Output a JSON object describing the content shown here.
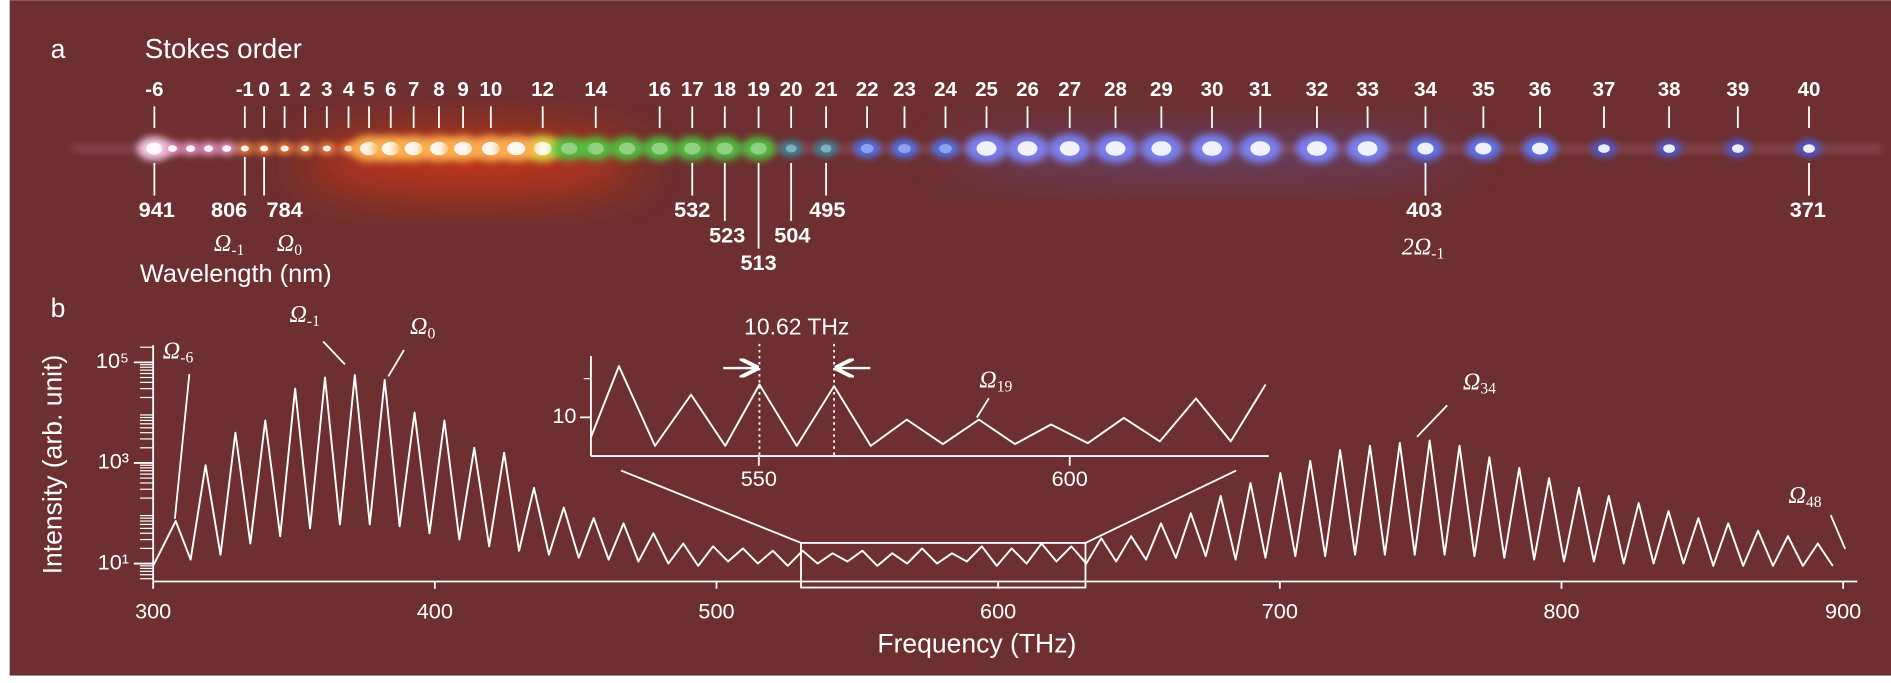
{
  "panel_a": {
    "label": "a",
    "axis_title": "Stokes order",
    "orders": [
      -6,
      -1,
      0,
      1,
      2,
      3,
      4,
      5,
      6,
      7,
      8,
      9,
      10,
      12,
      14,
      16,
      17,
      18,
      19,
      20,
      21,
      22,
      23,
      24,
      25,
      26,
      27,
      28,
      29,
      30,
      31,
      32,
      33,
      34,
      35,
      36,
      37,
      38,
      39,
      40
    ],
    "wavelength_title": "Wavelength (nm)",
    "wavelengths": [
      941,
      806,
      784,
      532,
      523,
      513,
      504,
      495,
      403,
      371
    ],
    "line_labels": [
      {
        "symbol": "Ω",
        "sub": "-1"
      },
      {
        "symbol": "Ω",
        "sub": "0"
      },
      {
        "symbol": "2Ω",
        "sub": "-1"
      }
    ]
  },
  "panel_b_label": "b",
  "chart_data": [
    {
      "type": "line",
      "x_label": "Frequency (THz)",
      "y_label": "Intensity (arb. unit)",
      "xlim": [
        300,
        905
      ],
      "ylim": [
        4.4,
        220000
      ],
      "log_y": true,
      "xticks": [
        300,
        400,
        500,
        600,
        700,
        800,
        900
      ],
      "yticks": [
        {
          "value": 10,
          "label": "10¹"
        },
        {
          "value": 1000,
          "label": "10³"
        },
        {
          "value": 100000,
          "label": "10⁵"
        }
      ],
      "yminorticks": [
        5,
        6,
        7,
        8,
        9,
        20,
        30,
        40,
        50,
        60,
        70,
        80,
        90,
        200,
        300,
        400,
        500,
        600,
        700,
        800,
        900,
        2000,
        3000,
        4000,
        5000,
        6000,
        7000,
        8000,
        9000,
        20000,
        30000,
        40000,
        50000,
        60000,
        70000,
        80000,
        90000,
        200000
      ],
      "color": "#ffffff",
      "x": [
        300,
        308.0,
        313.3,
        318.6,
        323.9,
        329.2,
        334.5,
        339.8,
        345.1,
        350.4,
        355.7,
        361.0,
        366.3,
        371.6,
        376.9,
        382.2,
        387.5,
        392.8,
        398.1,
        403.4,
        408.7,
        414.0,
        419.3,
        424.6,
        429.9,
        435.2,
        440.5,
        445.8,
        451.1,
        456.4,
        461.7,
        467.0,
        472.3,
        477.6,
        482.9,
        488.2,
        493.5,
        498.8,
        504.1,
        509.4,
        514.7,
        520.0,
        525.3,
        530.6,
        535.9,
        541.2,
        546.5,
        551.8,
        557.1,
        562.4,
        567.7,
        573.0,
        578.3,
        583.6,
        588.9,
        594.2,
        599.5,
        604.8,
        610.1,
        615.4,
        620.7,
        626.0,
        631.3,
        636.6,
        641.9,
        647.2,
        652.5,
        657.8,
        663.1,
        668.4,
        673.7,
        679.0,
        684.3,
        689.6,
        694.9,
        700.2,
        705.5,
        710.8,
        716.1,
        721.4,
        726.7,
        732.0,
        737.3,
        742.6,
        747.9,
        753.2,
        758.5,
        763.8,
        769.1,
        774.4,
        779.7,
        785.0,
        790.3,
        795.6,
        800.9,
        806.2,
        811.5,
        816.8,
        822.1,
        827.4,
        832.7,
        838.0,
        843.3,
        848.6,
        853.9,
        859.2,
        864.5,
        869.8,
        875.1,
        880.4,
        885.7,
        891.0,
        896.3
      ],
      "values": [
        9,
        70,
        12,
        900,
        15,
        4000,
        25,
        7000,
        35,
        30000,
        50,
        50000,
        60,
        56000,
        60,
        45000,
        55,
        10000,
        40,
        7000,
        30,
        2000,
        22,
        1600,
        18,
        320,
        15,
        130,
        13,
        80,
        12,
        63,
        11,
        40,
        10,
        25,
        9,
        22,
        11,
        20,
        10,
        18,
        9,
        18,
        10,
        16,
        11,
        18,
        9,
        16,
        10,
        20,
        10,
        16,
        11,
        22,
        9,
        20,
        10,
        25,
        11,
        22,
        10,
        32,
        11,
        35,
        12,
        63,
        13,
        100,
        14,
        220,
        12,
        400,
        13,
        630,
        14,
        1100,
        14,
        1800,
        15,
        2200,
        15,
        2500,
        15,
        2800,
        15,
        2200,
        14,
        1300,
        13,
        800,
        12,
        500,
        11,
        320,
        11,
        220,
        10,
        160,
        10,
        110,
        10,
        80,
        9,
        63,
        9,
        45,
        9,
        35,
        9,
        25,
        9
      ],
      "annotations": [
        {
          "symbol": "Ω",
          "sub": "-6"
        },
        {
          "symbol": "Ω",
          "sub": "-1"
        },
        {
          "symbol": "Ω",
          "sub": "0"
        },
        {
          "symbol": "Ω",
          "sub": "34"
        },
        {
          "symbol": "Ω",
          "sub": "48"
        }
      ],
      "zoom_box": [
        530,
        631
      ]
    },
    {
      "type": "line",
      "xlim": [
        523,
        632
      ],
      "ylim": [
        5,
        30
      ],
      "log_y": true,
      "xticks": [
        550,
        600
      ],
      "yticks": [
        10
      ],
      "yminorticks": [
        20
      ],
      "color": "#ffffff",
      "x": [
        523,
        527.5,
        533.3,
        539.1,
        544.6,
        550.1,
        556.1,
        562.1,
        568.0,
        573.8,
        579.6,
        585.4,
        591.2,
        597.0,
        602.9,
        608.7,
        614.5,
        620.3,
        625.9,
        631.5
      ],
      "values": [
        7,
        25,
        6,
        15,
        6,
        18,
        6,
        17.5,
        6,
        9.6,
        6.2,
        9.6,
        6.2,
        8.8,
        6.3,
        9.9,
        6.5,
        14,
        6.5,
        18
      ],
      "vlines": [
        550.1,
        562.1
      ],
      "spacing_label": "10.62 THz",
      "annotations": [
        {
          "symbol": "Ω",
          "sub": "19"
        }
      ]
    }
  ]
}
